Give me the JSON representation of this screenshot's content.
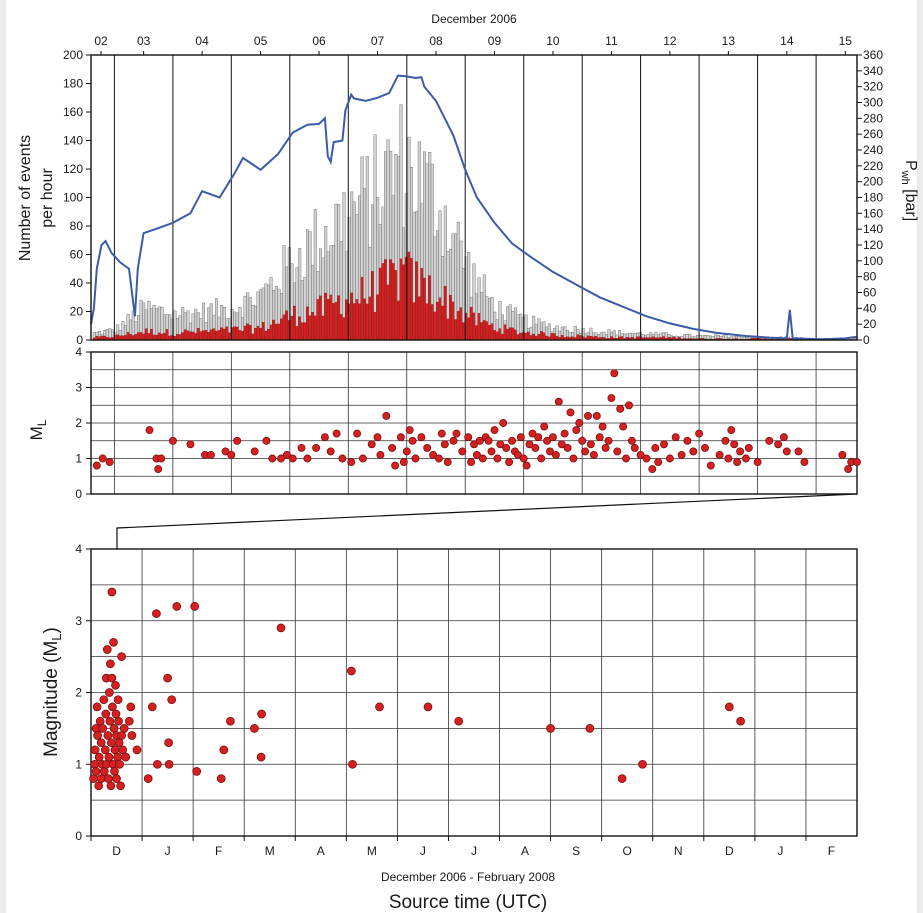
{
  "chart_data": [
    {
      "type": "bar",
      "title": "December 2006",
      "ylabel": [
        "Number of events",
        "per hour"
      ],
      "y2label": "P",
      "y2label_sub": "wh",
      "y2label_unit": " [bar]",
      "ylim": [
        0,
        200
      ],
      "y2lim": [
        0,
        360
      ],
      "yticks": [
        "0",
        "20",
        "40",
        "60",
        "80",
        "100",
        "120",
        "140",
        "160",
        "180",
        "200"
      ],
      "y2ticks": [
        "0",
        "20",
        "40",
        "60",
        "80",
        "100",
        "120",
        "140",
        "160",
        "180",
        "200",
        "220",
        "240",
        "260",
        "280",
        "300",
        "320",
        "340",
        "360"
      ],
      "day_labels": [
        "02",
        "03",
        "04",
        "05",
        "06",
        "07",
        "08",
        "09",
        "10",
        "11",
        "12",
        "13",
        "14",
        "15"
      ],
      "x_range_days": [
        2.1,
        15.2
      ],
      "colors": {
        "all_events": "#d2d2d2",
        "located_events": "#d42020",
        "pressure_line": "#3a5ca8"
      },
      "pressure_series": [
        [
          2.1,
          20
        ],
        [
          2.15,
          40
        ],
        [
          2.2,
          90
        ],
        [
          2.28,
          120
        ],
        [
          2.35,
          125
        ],
        [
          2.45,
          110
        ],
        [
          2.6,
          98
        ],
        [
          2.75,
          90
        ],
        [
          2.85,
          30
        ],
        [
          2.9,
          90
        ],
        [
          3.0,
          135
        ],
        [
          3.2,
          140
        ],
        [
          3.5,
          148
        ],
        [
          3.8,
          160
        ],
        [
          4.0,
          188
        ],
        [
          4.3,
          180
        ],
        [
          4.55,
          210
        ],
        [
          4.7,
          230
        ],
        [
          5.0,
          215
        ],
        [
          5.3,
          235
        ],
        [
          5.55,
          262
        ],
        [
          5.8,
          272
        ],
        [
          6.0,
          273
        ],
        [
          6.1,
          280
        ],
        [
          6.15,
          232
        ],
        [
          6.2,
          225
        ],
        [
          6.25,
          250
        ],
        [
          6.4,
          252
        ],
        [
          6.45,
          290
        ],
        [
          6.55,
          310
        ],
        [
          6.6,
          305
        ],
        [
          6.8,
          302
        ],
        [
          7.0,
          306
        ],
        [
          7.2,
          312
        ],
        [
          7.35,
          334
        ],
        [
          7.5,
          333
        ],
        [
          7.65,
          331
        ],
        [
          7.75,
          332
        ],
        [
          7.8,
          320
        ],
        [
          8.0,
          302
        ],
        [
          8.3,
          258
        ],
        [
          8.5,
          215
        ],
        [
          8.7,
          180
        ],
        [
          9.0,
          148
        ],
        [
          9.3,
          122
        ],
        [
          9.6,
          106
        ],
        [
          10.0,
          86
        ],
        [
          10.4,
          70
        ],
        [
          10.8,
          54
        ],
        [
          11.2,
          42
        ],
        [
          11.6,
          30
        ],
        [
          12.0,
          21
        ],
        [
          12.4,
          14
        ],
        [
          12.8,
          9
        ],
        [
          13.3,
          5
        ],
        [
          13.7,
          3
        ],
        [
          14.0,
          2
        ],
        [
          14.05,
          38
        ],
        [
          14.1,
          2
        ],
        [
          14.6,
          1
        ],
        [
          15.0,
          2
        ],
        [
          15.2,
          4
        ]
      ],
      "hourly_envelope": {
        "day": [
          2.1,
          2.5,
          3.0,
          3.5,
          4.0,
          4.5,
          5.0,
          5.5,
          6.0,
          6.4,
          6.8,
          7.1,
          7.4,
          7.6,
          7.9,
          8.2,
          8.6,
          9.0,
          9.5,
          10.0,
          10.5,
          11.0,
          11.5,
          12.0,
          12.5,
          13.0,
          13.5,
          14.0,
          14.5,
          15.2
        ],
        "all_events": [
          5,
          8,
          25,
          20,
          22,
          25,
          35,
          60,
          80,
          95,
          110,
          125,
          140,
          130,
          115,
          90,
          50,
          25,
          15,
          10,
          8,
          6,
          5,
          4,
          3,
          3,
          2,
          2,
          1,
          1
        ],
        "located_events": [
          2,
          3,
          7,
          6,
          7,
          8,
          10,
          20,
          25,
          33,
          38,
          45,
          55,
          48,
          40,
          30,
          18,
          10,
          6,
          4,
          3,
          2,
          2,
          2,
          1,
          1,
          1,
          1,
          0,
          0
        ]
      }
    },
    {
      "type": "scatter",
      "ylabel": "M",
      "ylabel_sub": "L",
      "ylim": [
        0,
        4
      ],
      "yticks": [
        "0",
        "1",
        "2",
        "3",
        "4"
      ],
      "x_range_days": [
        2.1,
        15.2
      ],
      "color": "#d42020",
      "points": [
        [
          2.2,
          0.8
        ],
        [
          2.3,
          1.0
        ],
        [
          2.42,
          0.9
        ],
        [
          3.1,
          1.8
        ],
        [
          3.22,
          1.0
        ],
        [
          3.25,
          0.7
        ],
        [
          3.3,
          1.0
        ],
        [
          3.5,
          1.5
        ],
        [
          3.8,
          1.4
        ],
        [
          4.05,
          1.1
        ],
        [
          4.15,
          1.1
        ],
        [
          4.4,
          1.2
        ],
        [
          4.5,
          1.1
        ],
        [
          4.6,
          1.5
        ],
        [
          4.9,
          1.2
        ],
        [
          5.1,
          1.5
        ],
        [
          5.2,
          1.0
        ],
        [
          5.35,
          1.0
        ],
        [
          5.45,
          1.1
        ],
        [
          5.55,
          1.0
        ],
        [
          5.7,
          1.3
        ],
        [
          5.8,
          1.0
        ],
        [
          5.95,
          1.3
        ],
        [
          6.1,
          1.6
        ],
        [
          6.2,
          1.2
        ],
        [
          6.3,
          1.7
        ],
        [
          6.4,
          1.0
        ],
        [
          6.55,
          0.9
        ],
        [
          6.65,
          1.7
        ],
        [
          6.75,
          1.0
        ],
        [
          6.9,
          1.4
        ],
        [
          7.0,
          1.6
        ],
        [
          7.05,
          1.1
        ],
        [
          7.15,
          2.2
        ],
        [
          7.25,
          1.3
        ],
        [
          7.3,
          0.8
        ],
        [
          7.4,
          1.6
        ],
        [
          7.45,
          0.9
        ],
        [
          7.5,
          1.2
        ],
        [
          7.55,
          1.8
        ],
        [
          7.6,
          1.5
        ],
        [
          7.65,
          1.0
        ],
        [
          7.75,
          1.6
        ],
        [
          7.85,
          1.3
        ],
        [
          7.95,
          1.1
        ],
        [
          8.05,
          1.0
        ],
        [
          8.1,
          1.7
        ],
        [
          8.15,
          1.4
        ],
        [
          8.2,
          0.9
        ],
        [
          8.3,
          1.5
        ],
        [
          8.35,
          1.7
        ],
        [
          8.45,
          1.2
        ],
        [
          8.55,
          1.6
        ],
        [
          8.6,
          0.9
        ],
        [
          8.65,
          1.4
        ],
        [
          8.7,
          1.1
        ],
        [
          8.75,
          1.5
        ],
        [
          8.8,
          1.0
        ],
        [
          8.85,
          1.6
        ],
        [
          8.9,
          1.5
        ],
        [
          8.95,
          1.2
        ],
        [
          9.0,
          1.8
        ],
        [
          9.05,
          1.0
        ],
        [
          9.1,
          1.4
        ],
        [
          9.15,
          2.0
        ],
        [
          9.2,
          1.3
        ],
        [
          9.25,
          0.9
        ],
        [
          9.3,
          1.5
        ],
        [
          9.35,
          1.2
        ],
        [
          9.4,
          1.1
        ],
        [
          9.45,
          1.6
        ],
        [
          9.5,
          1.0
        ],
        [
          9.55,
          0.8
        ],
        [
          9.6,
          1.4
        ],
        [
          9.65,
          1.7
        ],
        [
          9.7,
          1.3
        ],
        [
          9.75,
          1.6
        ],
        [
          9.8,
          1.0
        ],
        [
          9.85,
          1.9
        ],
        [
          9.9,
          1.5
        ],
        [
          9.95,
          1.2
        ],
        [
          10.0,
          1.6
        ],
        [
          10.05,
          1.1
        ],
        [
          10.1,
          2.6
        ],
        [
          10.15,
          1.4
        ],
        [
          10.2,
          1.7
        ],
        [
          10.25,
          1.3
        ],
        [
          10.3,
          2.3
        ],
        [
          10.35,
          1.0
        ],
        [
          10.4,
          1.8
        ],
        [
          10.45,
          2.0
        ],
        [
          10.5,
          1.5
        ],
        [
          10.55,
          1.2
        ],
        [
          10.6,
          2.2
        ],
        [
          10.65,
          1.4
        ],
        [
          10.7,
          1.1
        ],
        [
          10.75,
          2.2
        ],
        [
          10.8,
          1.6
        ],
        [
          10.85,
          1.9
        ],
        [
          10.9,
          1.3
        ],
        [
          10.95,
          1.5
        ],
        [
          11.0,
          2.7
        ],
        [
          11.05,
          3.4
        ],
        [
          11.1,
          1.2
        ],
        [
          11.15,
          2.4
        ],
        [
          11.2,
          1.9
        ],
        [
          11.25,
          1.0
        ],
        [
          11.3,
          2.5
        ],
        [
          11.35,
          1.5
        ],
        [
          11.4,
          1.3
        ],
        [
          11.5,
          1.1
        ],
        [
          11.6,
          1.0
        ],
        [
          11.7,
          0.7
        ],
        [
          11.75,
          1.3
        ],
        [
          11.8,
          0.9
        ],
        [
          11.9,
          1.4
        ],
        [
          12.0,
          1.0
        ],
        [
          12.1,
          1.6
        ],
        [
          12.2,
          1.1
        ],
        [
          12.3,
          1.5
        ],
        [
          12.4,
          1.2
        ],
        [
          12.5,
          1.7
        ],
        [
          12.6,
          1.3
        ],
        [
          12.7,
          0.8
        ],
        [
          12.85,
          1.1
        ],
        [
          12.95,
          1.5
        ],
        [
          13.0,
          1.0
        ],
        [
          13.05,
          1.8
        ],
        [
          13.1,
          1.4
        ],
        [
          13.15,
          0.9
        ],
        [
          13.2,
          1.2
        ],
        [
          13.3,
          1.0
        ],
        [
          13.35,
          1.3
        ],
        [
          13.5,
          0.9
        ],
        [
          13.7,
          1.5
        ],
        [
          13.85,
          1.4
        ],
        [
          13.95,
          1.6
        ],
        [
          14.0,
          1.2
        ],
        [
          14.2,
          1.2
        ],
        [
          14.3,
          0.9
        ],
        [
          14.95,
          1.1
        ],
        [
          15.05,
          0.7
        ],
        [
          15.1,
          0.9
        ],
        [
          15.2,
          0.9
        ]
      ]
    },
    {
      "type": "scatter",
      "ylabel": "Magnitude (M",
      "ylabel_sub": "L",
      "ylabel_end": ")",
      "xlabel": "Source time (UTC)",
      "subtitle": "December 2006 - February 2008",
      "ylim": [
        0,
        4
      ],
      "yticks": [
        "0",
        "1",
        "2",
        "3",
        "4"
      ],
      "month_labels": [
        "D",
        "J",
        "F",
        "M",
        "A",
        "M",
        "J",
        "J",
        "A",
        "S",
        "O",
        "N",
        "D",
        "J",
        "F"
      ],
      "x_range_months": [
        0,
        15
      ],
      "color": "#d42020",
      "points": [
        [
          0.05,
          0.8
        ],
        [
          0.07,
          1.0
        ],
        [
          0.08,
          1.2
        ],
        [
          0.1,
          1.5
        ],
        [
          0.1,
          0.9
        ],
        [
          0.12,
          1.8
        ],
        [
          0.13,
          1.4
        ],
        [
          0.15,
          0.7
        ],
        [
          0.16,
          1.1
        ],
        [
          0.18,
          1.6
        ],
        [
          0.2,
          0.8
        ],
        [
          0.2,
          1.3
        ],
        [
          0.22,
          1.0
        ],
        [
          0.23,
          1.5
        ],
        [
          0.25,
          1.9
        ],
        [
          0.26,
          0.9
        ],
        [
          0.28,
          1.2
        ],
        [
          0.29,
          1.7
        ],
        [
          0.3,
          2.2
        ],
        [
          0.3,
          1.0
        ],
        [
          0.32,
          2.6
        ],
        [
          0.33,
          1.4
        ],
        [
          0.34,
          0.8
        ],
        [
          0.35,
          1.1
        ],
        [
          0.36,
          2.0
        ],
        [
          0.37,
          1.6
        ],
        [
          0.38,
          2.4
        ],
        [
          0.39,
          0.7
        ],
        [
          0.4,
          1.3
        ],
        [
          0.41,
          3.4
        ],
        [
          0.41,
          2.2
        ],
        [
          0.42,
          1.8
        ],
        [
          0.43,
          1.0
        ],
        [
          0.44,
          2.7
        ],
        [
          0.45,
          1.5
        ],
        [
          0.46,
          0.9
        ],
        [
          0.47,
          1.2
        ],
        [
          0.48,
          2.1
        ],
        [
          0.49,
          1.7
        ],
        [
          0.5,
          1.4
        ],
        [
          0.5,
          0.8
        ],
        [
          0.52,
          1.1
        ],
        [
          0.53,
          1.9
        ],
        [
          0.54,
          1.6
        ],
        [
          0.55,
          1.3
        ],
        [
          0.56,
          1.0
        ],
        [
          0.58,
          0.7
        ],
        [
          0.6,
          1.4
        ],
        [
          0.6,
          2.5
        ],
        [
          0.62,
          1.2
        ],
        [
          0.65,
          1.5
        ],
        [
          0.68,
          1.1
        ],
        [
          0.75,
          1.6
        ],
        [
          0.78,
          1.8
        ],
        [
          0.8,
          1.4
        ],
        [
          0.9,
          1.2
        ],
        [
          1.12,
          0.8
        ],
        [
          1.2,
          1.8
        ],
        [
          1.28,
          3.1
        ],
        [
          1.3,
          1.0
        ],
        [
          1.5,
          2.2
        ],
        [
          1.52,
          1.3
        ],
        [
          1.53,
          1.0
        ],
        [
          1.58,
          1.9
        ],
        [
          1.68,
          3.2
        ],
        [
          2.03,
          3.2
        ],
        [
          2.07,
          0.9
        ],
        [
          2.55,
          0.8
        ],
        [
          2.6,
          1.2
        ],
        [
          2.73,
          1.6
        ],
        [
          3.2,
          1.5
        ],
        [
          3.33,
          1.1
        ],
        [
          3.34,
          1.7
        ],
        [
          3.72,
          2.9
        ],
        [
          5.1,
          2.3
        ],
        [
          5.12,
          1.0
        ],
        [
          5.65,
          1.8
        ],
        [
          6.6,
          1.8
        ],
        [
          7.2,
          1.6
        ],
        [
          9.0,
          1.5
        ],
        [
          9.77,
          1.5
        ],
        [
          10.4,
          0.8
        ],
        [
          10.8,
          1.0
        ],
        [
          12.5,
          1.8
        ],
        [
          12.72,
          1.6
        ]
      ]
    }
  ]
}
